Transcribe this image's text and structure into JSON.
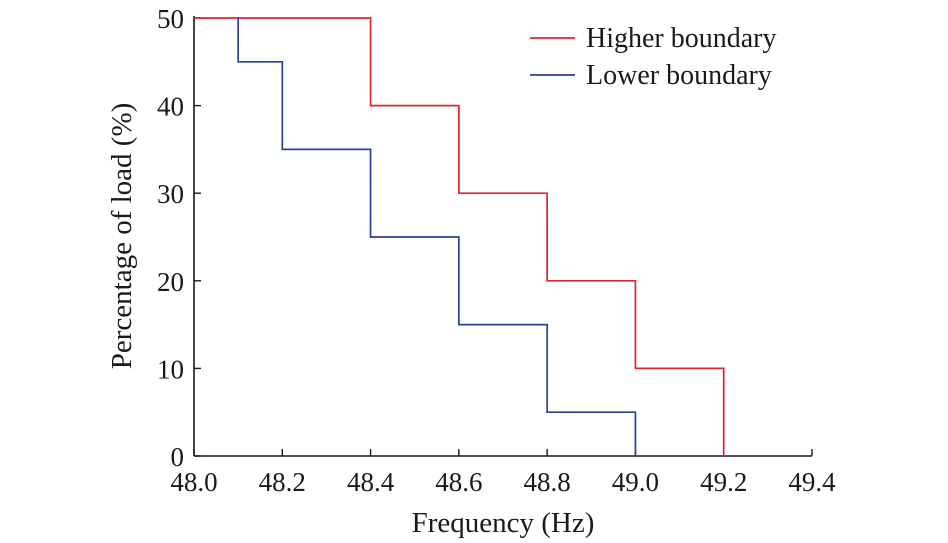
{
  "chart_data": {
    "type": "line",
    "step": "post",
    "title": "",
    "xlabel": "Frequency (Hz)",
    "ylabel": "Percentage of load (%)",
    "xlim": [
      48.0,
      49.4
    ],
    "ylim": [
      0,
      50
    ],
    "x_ticks": [
      "48.0",
      "48.2",
      "48.4",
      "48.6",
      "48.8",
      "49.0",
      "49.2",
      "49.4"
    ],
    "y_ticks": [
      "0",
      "10",
      "20",
      "30",
      "40",
      "50"
    ],
    "grid": false,
    "legend_position": "top-right",
    "series": [
      {
        "name": "Higher boundary",
        "color": "#e0242b",
        "x": [
          48.0,
          48.4,
          48.6,
          48.8,
          49.0,
          49.2,
          49.2
        ],
        "y": [
          50,
          40,
          30,
          20,
          10,
          10,
          0
        ]
      },
      {
        "name": "Lower boundary",
        "color": "#2b3f9e",
        "x": [
          48.1,
          48.1,
          48.2,
          48.4,
          48.6,
          48.8,
          49.0,
          49.0
        ],
        "y": [
          50,
          45,
          35,
          25,
          15,
          5,
          5,
          0
        ]
      }
    ]
  }
}
